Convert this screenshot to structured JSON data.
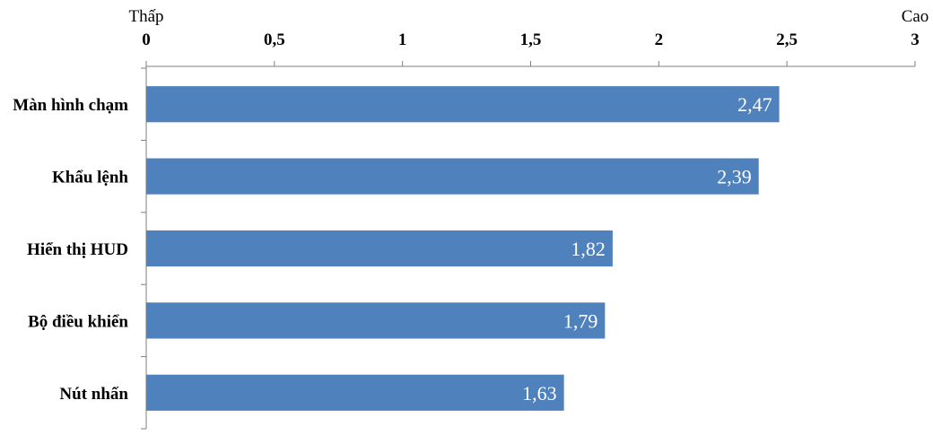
{
  "chart_data": {
    "type": "bar",
    "orientation": "horizontal",
    "categories": [
      "Màn hình chạm",
      "Khẩu lệnh",
      "Hiển thị HUD",
      "Bộ điều khiển",
      "Nút nhấn"
    ],
    "values": [
      2.47,
      2.39,
      1.82,
      1.79,
      1.63
    ],
    "value_labels": [
      "2,47",
      "2,39",
      "1,82",
      "1,79",
      "1,63"
    ],
    "xlim": [
      0,
      3
    ],
    "x_ticks": [
      0,
      0.5,
      1,
      1.5,
      2,
      2.5,
      3
    ],
    "x_tick_labels": [
      "0",
      "0,5",
      "1",
      "1,5",
      "2",
      "2,5",
      "3"
    ],
    "axis_position": "top",
    "low_label": "Thấp",
    "high_label": "Cao",
    "bar_color": "#4f81bd",
    "grid": false,
    "legend": "none"
  }
}
